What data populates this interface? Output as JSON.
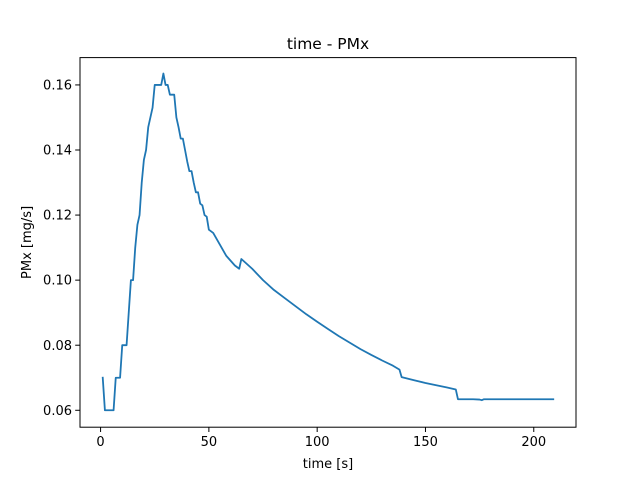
{
  "chart_data": {
    "type": "line",
    "title": "time - PMx",
    "xlabel": "time [s]",
    "ylabel": "PMx [mg/s]",
    "xlim": [
      -9.5,
      219.5
    ],
    "ylim": [
      0.0548,
      0.1684
    ],
    "xticks": [
      0,
      50,
      100,
      150,
      200
    ],
    "xtick_labels": [
      "0",
      "50",
      "100",
      "150",
      "200"
    ],
    "yticks": [
      0.06,
      0.08,
      0.1,
      0.12,
      0.14,
      0.16
    ],
    "ytick_labels": [
      "0.06",
      "0.08",
      "0.10",
      "0.12",
      "0.14",
      "0.16"
    ],
    "grid": false,
    "legend": "none",
    "series": [
      {
        "color": "#1f77b4",
        "x": [
          1,
          2,
          3,
          4,
          5,
          6,
          7,
          8,
          9,
          10,
          11,
          12,
          13,
          14,
          15,
          16,
          17,
          18,
          19,
          20,
          21,
          22,
          23,
          24,
          25,
          26,
          27,
          28,
          29,
          30,
          31,
          32,
          33,
          34,
          35,
          36,
          37,
          38,
          39,
          40,
          41,
          42,
          43,
          44,
          45,
          46,
          47,
          48,
          49,
          50,
          52,
          55,
          58,
          60,
          62,
          64,
          65,
          70,
          75,
          80,
          85,
          90,
          95,
          100,
          105,
          110,
          115,
          120,
          125,
          130,
          135,
          138,
          139,
          145,
          150,
          155,
          160,
          164,
          165,
          170,
          172,
          175,
          176,
          177,
          180,
          185,
          190,
          195,
          200,
          205,
          209
        ],
        "y": [
          0.07,
          0.06,
          0.06,
          0.06,
          0.06,
          0.06,
          0.07,
          0.07,
          0.07,
          0.08,
          0.08,
          0.08,
          0.09,
          0.1,
          0.1,
          0.11,
          0.117,
          0.12,
          0.13,
          0.137,
          0.14,
          0.147,
          0.15,
          0.153,
          0.16,
          0.16,
          0.16,
          0.16,
          0.1635,
          0.16,
          0.16,
          0.157,
          0.157,
          0.157,
          0.15,
          0.147,
          0.1435,
          0.1435,
          0.14,
          0.1365,
          0.1335,
          0.1335,
          0.13,
          0.127,
          0.127,
          0.1235,
          0.123,
          0.12,
          0.1195,
          0.1155,
          0.1145,
          0.111,
          0.1075,
          0.106,
          0.1045,
          0.1035,
          0.1065,
          0.1035,
          0.1,
          0.097,
          0.0945,
          0.092,
          0.0895,
          0.0872,
          0.085,
          0.0828,
          0.0808,
          0.0788,
          0.077,
          0.0753,
          0.0737,
          0.0725,
          0.0702,
          0.0692,
          0.0684,
          0.0677,
          0.067,
          0.0664,
          0.0634,
          0.0634,
          0.0634,
          0.0633,
          0.0631,
          0.0634,
          0.0634,
          0.0634,
          0.0634,
          0.0634,
          0.0634,
          0.0634,
          0.0634
        ]
      }
    ]
  }
}
